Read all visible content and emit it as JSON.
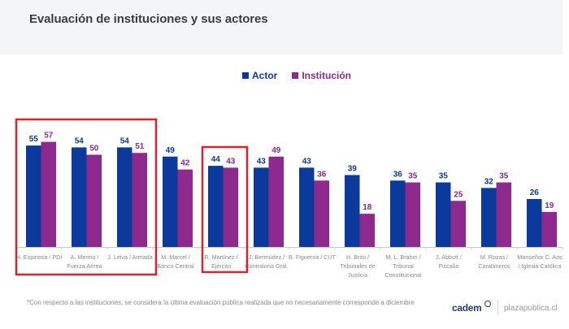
{
  "page": {
    "title": "Evaluación de instituciones y sus actores",
    "footnote": "*Con respecto a las instituciones, se considera la última evaluación pública realizada que no necesariamente corresponde a diciembre",
    "brand": "cadem",
    "site": "plazapublica.cl"
  },
  "colors": {
    "actor": "#0b3a9c",
    "institucion": "#8e2a8e",
    "highlight_box": "#d9232e"
  },
  "chart_data": {
    "type": "bar",
    "title": "Evaluación de instituciones y sus actores",
    "xlabel": "",
    "ylabel": "",
    "ylim": [
      0,
      60
    ],
    "grid": false,
    "legend_position": "top-center",
    "categories": [
      [
        "H. Espinosa / PDI"
      ],
      [
        "A. Merino /",
        "Fuerza Aérea"
      ],
      [
        "J. Leiva / Armada"
      ],
      [
        "M. Marcel /",
        "Banco Central"
      ],
      [
        "R. Martínez /",
        "Ejército"
      ],
      [
        "J. Bermúdez /",
        "Contraloría Gral."
      ],
      [
        "B. Figueroa / CUT"
      ],
      [
        "H. Brito /",
        "Tribunales de",
        "Justicia"
      ],
      [
        "M. L. Brahm /",
        "Tribunal",
        "Constitucional"
      ],
      [
        "J. Abbott /",
        "Fiscalía"
      ],
      [
        "M. Rozas /",
        "Carabineros"
      ],
      [
        "Monseñor C. Aos",
        "/ Iglesia Católica"
      ]
    ],
    "series": [
      {
        "name": "Actor",
        "values": [
          55,
          54,
          54,
          49,
          44,
          43,
          43,
          39,
          36,
          35,
          32,
          26
        ]
      },
      {
        "name": "Institución",
        "values": [
          57,
          50,
          51,
          42,
          43,
          49,
          36,
          18,
          35,
          25,
          35,
          19
        ]
      }
    ],
    "highlighted_groups": [
      [
        0,
        2
      ],
      [
        4,
        4
      ]
    ]
  }
}
